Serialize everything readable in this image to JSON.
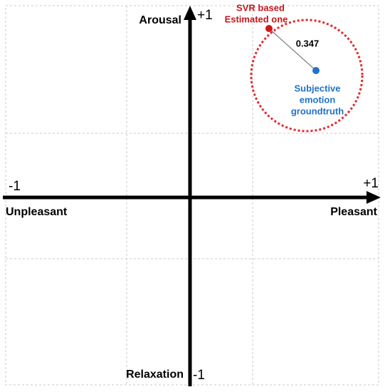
{
  "axes": {
    "top": {
      "label": "Arousal",
      "end": "+1"
    },
    "bottom": {
      "label": "Relaxation",
      "end": "-1"
    },
    "left": {
      "label": "Unpleasant",
      "end": "-1"
    },
    "right": {
      "label": "Pleasant",
      "end": "+1"
    }
  },
  "estimated": {
    "label": [
      "SVR based",
      "Estimated one"
    ]
  },
  "groundtruth": {
    "label": [
      "Subjective",
      "emotion",
      "groundtruth"
    ]
  },
  "distance": "0.347"
}
